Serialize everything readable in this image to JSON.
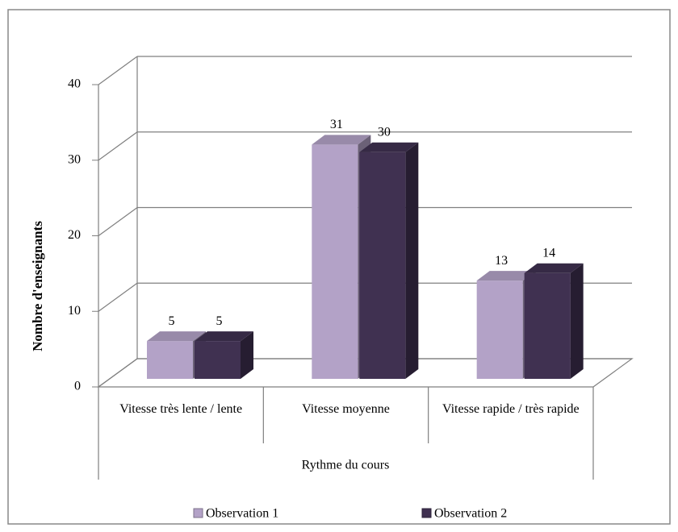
{
  "chart_data": {
    "type": "bar3d",
    "categories": [
      "Vitesse très lente / lente",
      "Vitesse moyenne",
      "Vitesse rapide / très rapide"
    ],
    "series": [
      {
        "name": "Observation 1",
        "color": "#b3a2c7",
        "values": [
          5,
          31,
          13
        ]
      },
      {
        "name": "Observation 2",
        "color": "#403151",
        "values": [
          5,
          30,
          14
        ]
      }
    ],
    "ylim": [
      0,
      40
    ],
    "yticks": [
      0,
      10,
      20,
      30,
      40
    ],
    "grid": true,
    "ylabel": "Nombre d'enseignants",
    "xlabel": "Rythme du cours",
    "legend": "bottom"
  }
}
